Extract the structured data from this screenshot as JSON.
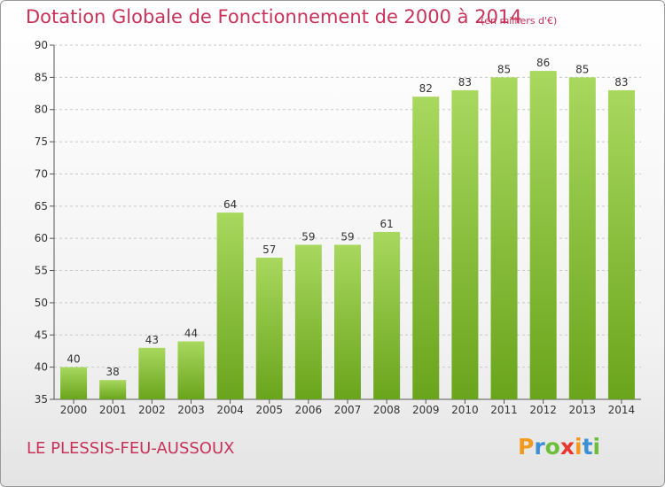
{
  "header": {
    "title": "Dotation Globale de Fonctionnement de 2000 à 2014",
    "unit_note": "(en milliers d'€)"
  },
  "footer": {
    "commune": "LE PLESSIS-FEU-AUSSOUX",
    "logo_letters": [
      {
        "char": "P",
        "color": "#f39a1e"
      },
      {
        "char": "r",
        "color": "#3a8fd6"
      },
      {
        "char": "o",
        "color": "#6dbf3a"
      },
      {
        "char": "x",
        "color": "#e8372c"
      },
      {
        "char": "i",
        "color": "#f39a1e"
      },
      {
        "char": "t",
        "color": "#3a8fd6"
      },
      {
        "char": "i",
        "color": "#6dbf3a"
      }
    ]
  },
  "colors": {
    "accent": "#c8325a",
    "bar_top": "#a8d85e",
    "bar_bottom": "#6aa41c",
    "grid": "#c8c8c8",
    "axis_text": "#333333"
  },
  "chart_data": {
    "type": "bar",
    "categories": [
      "2000",
      "2001",
      "2002",
      "2003",
      "2004",
      "2005",
      "2006",
      "2007",
      "2008",
      "2009",
      "2010",
      "2011",
      "2012",
      "2013",
      "2014"
    ],
    "values": [
      40,
      38,
      43,
      44,
      64,
      57,
      59,
      59,
      61,
      82,
      83,
      85,
      86,
      85,
      83
    ],
    "title": "Dotation Globale de Fonctionnement de 2000 à 2014",
    "subtitle": "(en milliers d'€)",
    "ylim": [
      35,
      90
    ],
    "yticks": [
      35,
      40,
      45,
      50,
      55,
      60,
      65,
      70,
      75,
      80,
      85,
      90
    ],
    "grid": true,
    "data_labels": true
  }
}
